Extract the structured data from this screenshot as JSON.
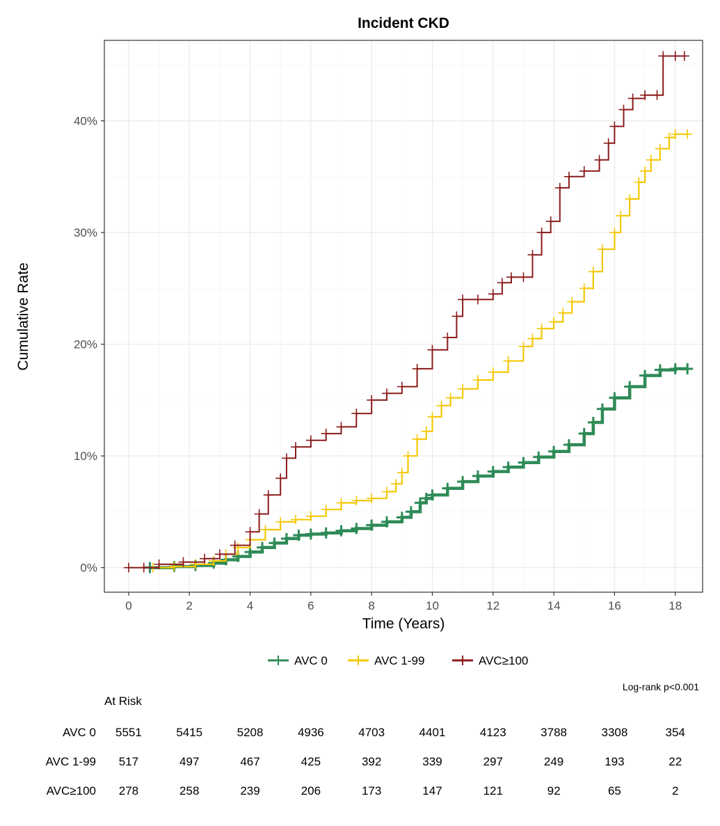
{
  "chart_data": {
    "type": "line",
    "subtype": "kaplan-meier-cumulative-incidence",
    "title": "Incident CKD",
    "xlabel": "Time (Years)",
    "ylabel": "Cumulative Rate",
    "xlim": [
      -0.8,
      18.9
    ],
    "ylim": [
      -2.2,
      47.2
    ],
    "xticks": [
      0,
      2,
      4,
      6,
      8,
      10,
      12,
      14,
      16,
      18
    ],
    "xtick_labels": [
      "0",
      "2",
      "4",
      "6",
      "8",
      "10",
      "12",
      "14",
      "16",
      "18"
    ],
    "yticks": [
      0,
      10,
      20,
      30,
      40
    ],
    "ytick_labels": [
      "0%",
      "10%",
      "20%",
      "30%",
      "40%"
    ],
    "grid": true,
    "legend_position": "bottom",
    "annotation": "Log-rank p<0.001",
    "series": [
      {
        "name": "AVC 0",
        "color": "#2E8B57",
        "x": [
          0.7,
          1.5,
          2.2,
          2.8,
          3.2,
          3.6,
          4.0,
          4.4,
          4.8,
          5.2,
          5.6,
          6.0,
          6.5,
          7.0,
          7.5,
          8.0,
          8.5,
          9.0,
          9.3,
          9.6,
          9.8,
          10.0,
          10.5,
          11.0,
          11.5,
          12.0,
          12.5,
          13.0,
          13.5,
          14.0,
          14.5,
          15.0,
          15.3,
          15.6,
          16.0,
          16.5,
          17.0,
          17.5,
          18.0,
          18.4
        ],
        "y": [
          0.0,
          0.1,
          0.2,
          0.4,
          0.7,
          1.0,
          1.4,
          1.8,
          2.2,
          2.6,
          2.9,
          3.0,
          3.1,
          3.3,
          3.5,
          3.8,
          4.1,
          4.5,
          5.0,
          5.8,
          6.2,
          6.5,
          7.1,
          7.7,
          8.2,
          8.6,
          9.0,
          9.4,
          9.9,
          10.4,
          11.0,
          12.0,
          13.0,
          14.2,
          15.2,
          16.2,
          17.2,
          17.7,
          17.8,
          17.8
        ]
      },
      {
        "name": "AVC 1-99",
        "color": "#F5C700",
        "x": [
          0.8,
          1.5,
          2.2,
          2.8,
          3.2,
          3.6,
          4.0,
          4.5,
          5.0,
          5.5,
          6.0,
          6.5,
          7.0,
          7.5,
          8.0,
          8.5,
          8.8,
          9.0,
          9.2,
          9.5,
          9.8,
          10.0,
          10.3,
          10.6,
          11.0,
          11.5,
          12.0,
          12.5,
          13.0,
          13.3,
          13.6,
          14.0,
          14.3,
          14.6,
          15.0,
          15.3,
          15.6,
          16.0,
          16.2,
          16.5,
          16.8,
          17.0,
          17.2,
          17.5,
          17.8,
          18.0,
          18.4
        ],
        "y": [
          0.0,
          0.1,
          0.3,
          0.6,
          1.2,
          1.8,
          2.5,
          3.4,
          4.1,
          4.3,
          4.6,
          5.2,
          5.8,
          6.0,
          6.2,
          6.8,
          7.5,
          8.5,
          10.0,
          11.5,
          12.2,
          13.5,
          14.5,
          15.2,
          16.0,
          16.8,
          17.5,
          18.5,
          19.8,
          20.5,
          21.4,
          22.0,
          22.8,
          23.8,
          25.0,
          26.5,
          28.5,
          30.0,
          31.5,
          33.0,
          34.5,
          35.5,
          36.5,
          37.5,
          38.5,
          38.8,
          38.8
        ]
      },
      {
        "name": "AVC≥100",
        "color": "#8B1A1A",
        "x": [
          0.0,
          0.5,
          1.0,
          1.8,
          2.5,
          3.0,
          3.5,
          4.0,
          4.3,
          4.6,
          5.0,
          5.2,
          5.5,
          6.0,
          6.5,
          7.0,
          7.5,
          8.0,
          8.5,
          9.0,
          9.5,
          10.0,
          10.5,
          10.8,
          11.0,
          11.5,
          12.0,
          12.3,
          12.6,
          13.0,
          13.3,
          13.6,
          13.9,
          14.2,
          14.5,
          15.0,
          15.5,
          15.8,
          16.0,
          16.3,
          16.6,
          17.0,
          17.4,
          17.6,
          18.0,
          18.3
        ],
        "y": [
          0.0,
          0.0,
          0.3,
          0.5,
          0.8,
          1.2,
          2.0,
          3.2,
          4.8,
          6.5,
          8.0,
          9.8,
          10.8,
          11.4,
          12.0,
          12.6,
          13.8,
          15.0,
          15.6,
          16.2,
          17.8,
          19.5,
          20.6,
          22.5,
          24.0,
          24.0,
          24.5,
          25.5,
          26.0,
          26.0,
          28.0,
          30.0,
          31.0,
          34.0,
          35.0,
          35.5,
          36.5,
          38.0,
          39.5,
          41.0,
          42.0,
          42.3,
          42.3,
          45.8,
          45.8,
          45.8
        ]
      }
    ],
    "risk_table": {
      "header": "At Risk",
      "times": [
        0,
        2,
        4,
        6,
        8,
        10,
        12,
        14,
        16,
        18
      ],
      "rows": [
        {
          "label": "AVC 0",
          "values": [
            "5551",
            "5415",
            "5208",
            "4936",
            "4703",
            "4401",
            "4123",
            "3788",
            "3308",
            "354"
          ]
        },
        {
          "label": "AVC 1-99",
          "values": [
            "517",
            "497",
            "467",
            "425",
            "392",
            "339",
            "297",
            "249",
            "193",
            "22"
          ]
        },
        {
          "label": "AVC≥100",
          "values": [
            "278",
            "258",
            "239",
            "206",
            "173",
            "147",
            "121",
            "92",
            "65",
            "2"
          ]
        }
      ]
    }
  }
}
